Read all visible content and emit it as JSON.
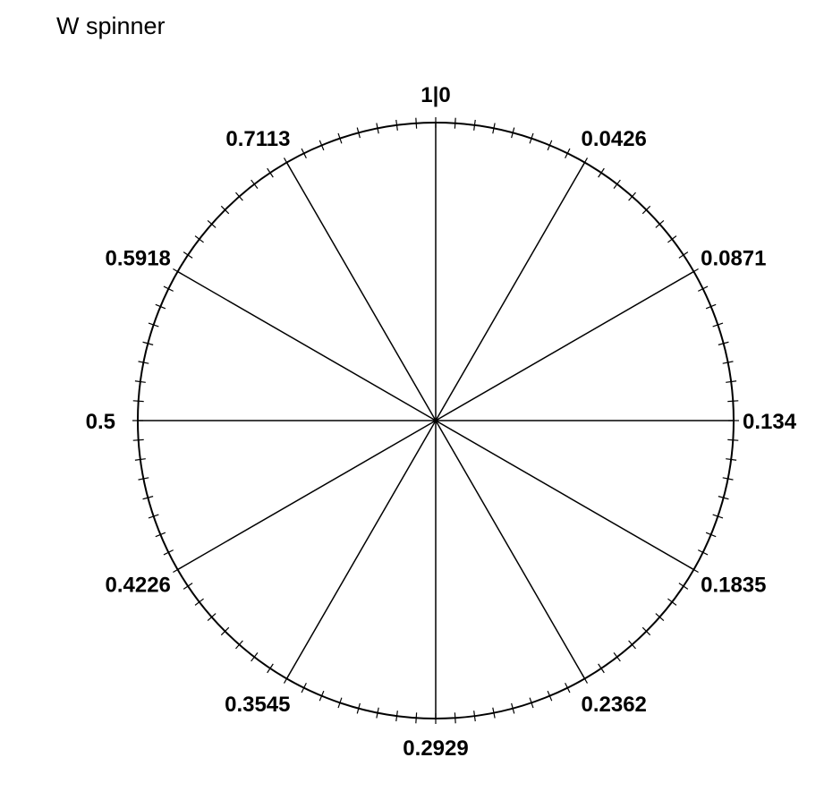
{
  "title": "W spinner",
  "spinner": {
    "type": "pie",
    "sector_count": 12,
    "boundary_labels": [
      "1|0",
      "0.0426",
      "0.0871",
      "0.134",
      "0.1835",
      "0.2362",
      "0.2929",
      "0.3545",
      "0.4226",
      "0.5",
      "0.5918",
      "0.7113"
    ],
    "tick_count_per_sector": 8
  }
}
